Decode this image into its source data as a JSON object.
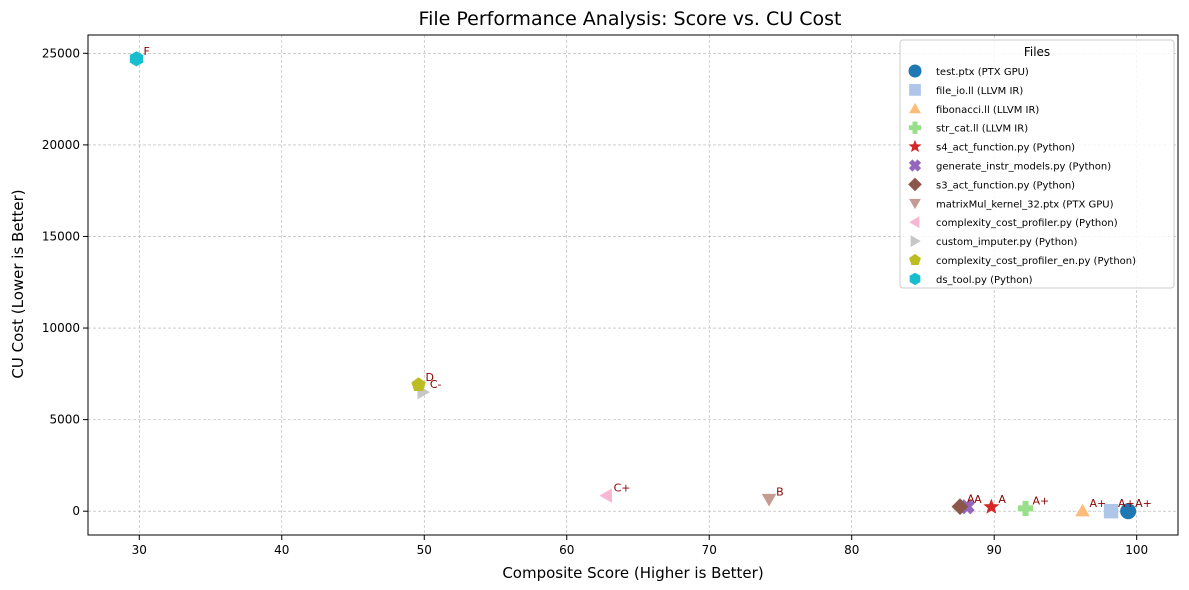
{
  "chart_data": {
    "type": "scatter",
    "title": "File Performance Analysis: Score vs. CU Cost",
    "xlabel": "Composite Score (Higher is Better)",
    "ylabel": "CU Cost (Lower is Better)",
    "xlim": [
      26.4,
      102.9
    ],
    "ylim": [
      -1300,
      26000
    ],
    "xticks": [
      30,
      40,
      50,
      60,
      70,
      80,
      90,
      100
    ],
    "yticks": [
      0,
      5000,
      10000,
      15000,
      20000,
      25000
    ],
    "grid": true,
    "legend": {
      "title": "Files",
      "position": "top-right"
    },
    "series": [
      {
        "name": "test.ptx (PTX GPU)",
        "color": "#1f77b4",
        "marker": "circle",
        "x": 99.4,
        "y": 0,
        "grade": "A+"
      },
      {
        "name": "file_io.ll (LLVM IR)",
        "color": "#aec7e8",
        "marker": "square",
        "x": 98.2,
        "y": 0,
        "grade": "A+"
      },
      {
        "name": "fibonacci.ll (LLVM IR)",
        "color": "#ffbb78",
        "marker": "triangle-up",
        "x": 96.2,
        "y": 10,
        "grade": "A+"
      },
      {
        "name": "str_cat.ll (LLVM IR)",
        "color": "#98df8a",
        "marker": "plus",
        "x": 92.2,
        "y": 150,
        "grade": "A+"
      },
      {
        "name": "s4_act_function.py (Python)",
        "color": "#d62728",
        "marker": "star",
        "x": 89.8,
        "y": 230,
        "grade": "A"
      },
      {
        "name": "generate_instr_models.py (Python)",
        "color": "#9467bd",
        "marker": "x",
        "x": 88.1,
        "y": 240,
        "grade": "A"
      },
      {
        "name": "s3_act_function.py (Python)",
        "color": "#8c564b",
        "marker": "diamond",
        "x": 87.6,
        "y": 250,
        "grade": "A"
      },
      {
        "name": "matrixMul_kernel_32.ptx (PTX GPU)",
        "color": "#c49c94",
        "marker": "triangle-down",
        "x": 74.2,
        "y": 650,
        "grade": "B"
      },
      {
        "name": "complexity_cost_profiler.py (Python)",
        "color": "#f7b6d2",
        "marker": "triangle-left",
        "x": 62.8,
        "y": 850,
        "grade": "C+"
      },
      {
        "name": "custom_imputer.py (Python)",
        "color": "#c7c7c7",
        "marker": "triangle-right",
        "x": 49.9,
        "y": 6500,
        "grade": "C-"
      },
      {
        "name": "complexity_cost_profiler_en.py (Python)",
        "color": "#bcbd22",
        "marker": "pentagon",
        "x": 49.6,
        "y": 6900,
        "grade": "D"
      },
      {
        "name": "ds_tool.py (Python)",
        "color": "#17becf",
        "marker": "hexagon",
        "x": 29.8,
        "y": 24700,
        "grade": "F"
      }
    ]
  }
}
